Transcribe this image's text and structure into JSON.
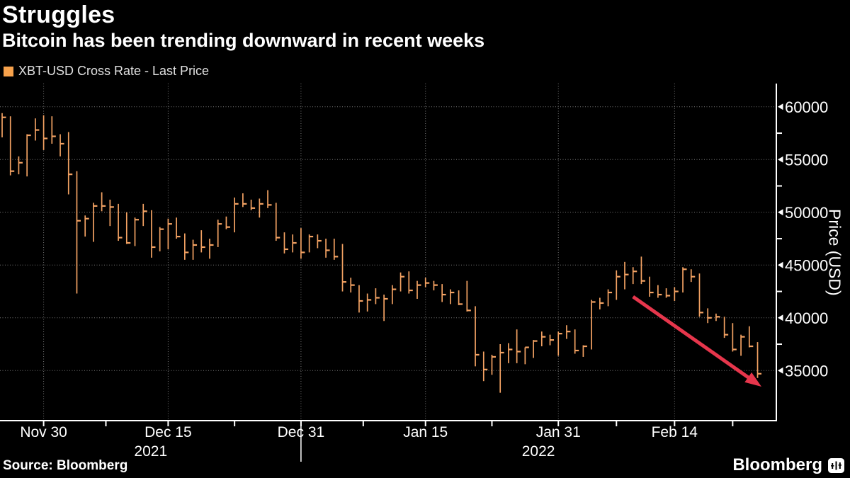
{
  "header": {
    "title": "Struggles",
    "subtitle": "Bitcoin has been trending downward in recent weeks"
  },
  "legend": {
    "label": "XBT-USD Cross Rate - Last Price"
  },
  "footer": {
    "source": "Source: Bloomberg",
    "brand": "Bloomberg"
  },
  "colors": {
    "background": "#000000",
    "bar": "#f3a263",
    "legend_swatch": "#f7a24c",
    "arrow": "#e6364c",
    "grid": "#757575",
    "axis": "#ffffff",
    "text": "#ffffff"
  },
  "chart_data": {
    "type": "bar",
    "subtype": "hlc-price-bars",
    "title": "Struggles",
    "subtitle": "Bitcoin has been trending downward in recent weeks",
    "series_name": "XBT-USD Cross Rate - Last Price",
    "grid": "dotted",
    "legend_position": "top-left",
    "y_axis": {
      "title": "Price (USD)",
      "side": "right",
      "range": [
        32400,
        62300
      ],
      "major_ticks": [
        35000,
        40000,
        45000,
        50000,
        55000,
        60000
      ],
      "minor_ticks": [
        37500,
        42500,
        47500,
        52500,
        57500
      ]
    },
    "x_axis": {
      "tick_labels": [
        {
          "label": "Nov 30",
          "index": 5
        },
        {
          "label": "Dec 15",
          "index": 20
        },
        {
          "label": "Dec 31",
          "index": 36
        },
        {
          "label": "Jan 15",
          "index": 51
        },
        {
          "label": "Jan 31",
          "index": 67
        },
        {
          "label": "Feb 14",
          "index": 81
        }
      ],
      "minor_tick_indices": [
        12.5,
        28,
        43.5,
        59,
        74,
        88
      ],
      "year_labels": [
        {
          "label": "2021",
          "index": 17.9
        },
        {
          "label": "2022",
          "index": 64.6
        }
      ],
      "year_separator_index": 36
    },
    "dates": [
      "11/25",
      "11/26",
      "11/27",
      "11/28",
      "11/29",
      "11/30",
      "12/01",
      "12/02",
      "12/03",
      "12/04",
      "12/05",
      "12/06",
      "12/07",
      "12/08",
      "12/09",
      "12/10",
      "12/11",
      "12/12",
      "12/13",
      "12/14",
      "12/15",
      "12/16",
      "12/17",
      "12/18",
      "12/19",
      "12/20",
      "12/21",
      "12/22",
      "12/23",
      "12/24",
      "12/25",
      "12/26",
      "12/27",
      "12/28",
      "12/29",
      "12/30",
      "12/31",
      "01/01",
      "01/02",
      "01/03",
      "01/04",
      "01/05",
      "01/06",
      "01/07",
      "01/08",
      "01/09",
      "01/10",
      "01/11",
      "01/12",
      "01/13",
      "01/14",
      "01/15",
      "01/16",
      "01/17",
      "01/18",
      "01/19",
      "01/20",
      "01/21",
      "01/22",
      "01/23",
      "01/24",
      "01/25",
      "01/26",
      "01/27",
      "01/28",
      "01/29",
      "01/30",
      "01/31",
      "02/01",
      "02/02",
      "02/03",
      "02/04",
      "02/05",
      "02/06",
      "02/07",
      "02/08",
      "02/09",
      "02/10",
      "02/11",
      "02/12",
      "02/13",
      "02/14",
      "02/15",
      "02/16",
      "02/17",
      "02/18",
      "02/19",
      "02/20",
      "02/21",
      "02/22",
      "02/23",
      "02/24"
    ],
    "high": [
      59400,
      59100,
      55300,
      57400,
      58900,
      59200,
      59100,
      57400,
      57600,
      53900,
      49700,
      50900,
      51900,
      51200,
      50800,
      50000,
      49500,
      50800,
      50200,
      48600,
      49400,
      49500,
      48000,
      47400,
      48300,
      47500,
      49300,
      49600,
      51400,
      51800,
      51200,
      51300,
      52100,
      50900,
      48100,
      47900,
      48500,
      47900,
      47900,
      47500,
      47500,
      47000,
      43800,
      43100,
      42300,
      42800,
      42200,
      43100,
      44300,
      44400,
      43500,
      43800,
      43500,
      43200,
      42700,
      42600,
      43500,
      41100,
      36800,
      36500,
      37500,
      37600,
      38900,
      37200,
      37900,
      38700,
      38400,
      38700,
      39300,
      38900,
      37400,
      41700,
      41900,
      42700,
      44500,
      45300,
      44800,
      45800,
      43900,
      43100,
      42800,
      42900,
      44800,
      44600,
      44200,
      40900,
      40400,
      40100,
      39500,
      38400,
      39200,
      37700
    ],
    "low": [
      57100,
      53500,
      53600,
      53400,
      56800,
      55900,
      56500,
      55300,
      51700,
      42300,
      47700,
      47200,
      50100,
      48700,
      47300,
      47000,
      46800,
      48700,
      45700,
      46300,
      46500,
      47500,
      45500,
      45500,
      46200,
      45600,
      46700,
      48400,
      48100,
      50500,
      50200,
      49500,
      50400,
      47300,
      46100,
      46200,
      45600,
      46200,
      46600,
      45700,
      45500,
      42500,
      42400,
      40500,
      40600,
      41300,
      39700,
      41300,
      42500,
      42300,
      41800,
      42900,
      42600,
      41500,
      41300,
      41200,
      40600,
      35400,
      34000,
      34600,
      32900,
      35700,
      35700,
      35600,
      36200,
      37300,
      37400,
      36400,
      38000,
      36600,
      36300,
      37000,
      40800,
      41100,
      41700,
      42700,
      43200,
      43200,
      42000,
      41900,
      41900,
      41600,
      42400,
      43400,
      40100,
      39500,
      39700,
      38100,
      36800,
      36400,
      37200,
      34300
    ],
    "close": [
      59000,
      53900,
      54700,
      57300,
      57800,
      57000,
      57200,
      56500,
      53600,
      49200,
      49400,
      50600,
      50600,
      50500,
      47600,
      47100,
      49300,
      50100,
      46700,
      48400,
      48900,
      47700,
      46200,
      46900,
      46700,
      46900,
      48900,
      48600,
      50800,
      50800,
      50400,
      50800,
      50700,
      47600,
      46500,
      47100,
      46200,
      47700,
      47300,
      46400,
      45800,
      43400,
      43100,
      41600,
      41700,
      41900,
      41800,
      42700,
      43900,
      42600,
      43100,
      43300,
      43100,
      42200,
      42400,
      41300,
      40700,
      36500,
      35100,
      36300,
      36700,
      37000,
      36800,
      37200,
      37800,
      38200,
      37900,
      38500,
      38700,
      36900,
      37300,
      41500,
      41400,
      42400,
      43900,
      44100,
      44400,
      43500,
      42400,
      42200,
      42100,
      42500,
      44600,
      43900,
      40500,
      40000,
      40100,
      38400,
      37000,
      38200,
      37300,
      34700
    ],
    "annotation_arrow": {
      "from": {
        "index": 76,
        "price": 42000
      },
      "to": {
        "index": 90.7,
        "price": 33900
      }
    }
  }
}
